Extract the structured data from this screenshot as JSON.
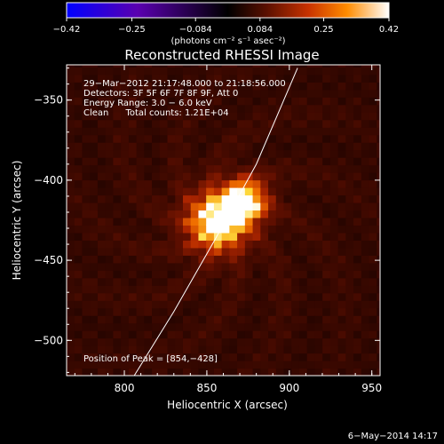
{
  "chart_data": {
    "type": "heatmap",
    "title": "Reconstructed RHESSI Image",
    "xlabel": "Heliocentric X (arcsec)",
    "ylabel": "Heliocentric Y (arcsec)",
    "xlim": [
      765,
      955
    ],
    "ylim": [
      -522,
      -328
    ],
    "x_ticks": [
      800,
      850,
      900,
      950
    ],
    "y_ticks": [
      -350,
      -400,
      -450,
      -500
    ],
    "x_tick_labels": [
      "800",
      "850",
      "900",
      "950"
    ],
    "y_tick_labels": [
      "−350",
      "−400",
      "−450",
      "−500"
    ],
    "colorbar": {
      "range": [
        -0.42,
        0.42
      ],
      "ticks": [
        -0.42,
        -0.25,
        -0.084,
        0.084,
        0.25,
        0.42
      ],
      "tick_labels": [
        "−0.42",
        "−0.25",
        "−0.084",
        "0.084",
        "0.25",
        "0.42"
      ],
      "unit_label": "(photons cm⁻² s⁻¹ asec⁻²)"
    },
    "peak": {
      "x": 854,
      "y": -428,
      "value": 0.42
    },
    "limb_curve": [
      [
        806,
        -522
      ],
      [
        830,
        -482
      ],
      [
        855,
        -437
      ],
      [
        880,
        -390
      ],
      [
        905,
        -330
      ]
    ],
    "annotations": {
      "time_range": "29−Mar−2012 21:17:48.000 to 21:18:56.000",
      "detectors": "Detectors: 3F 5F 6F 7F 8F 9F, Att 0",
      "energy_range": "Energy Range: 3.0 − 6.0 keV",
      "method_counts": "Clean      Total counts: 1.21E+04",
      "peak_position": "Position of Peak = [854,−428]"
    },
    "footer_date": "6−May−2014 14:17"
  },
  "colors": {
    "background": "#000000",
    "foreground": "#ffffff",
    "colormap": [
      "#0000ff",
      "#5a00b0",
      "#000000",
      "#5a1000",
      "#c83200",
      "#ff8c00",
      "#ffffff"
    ]
  }
}
